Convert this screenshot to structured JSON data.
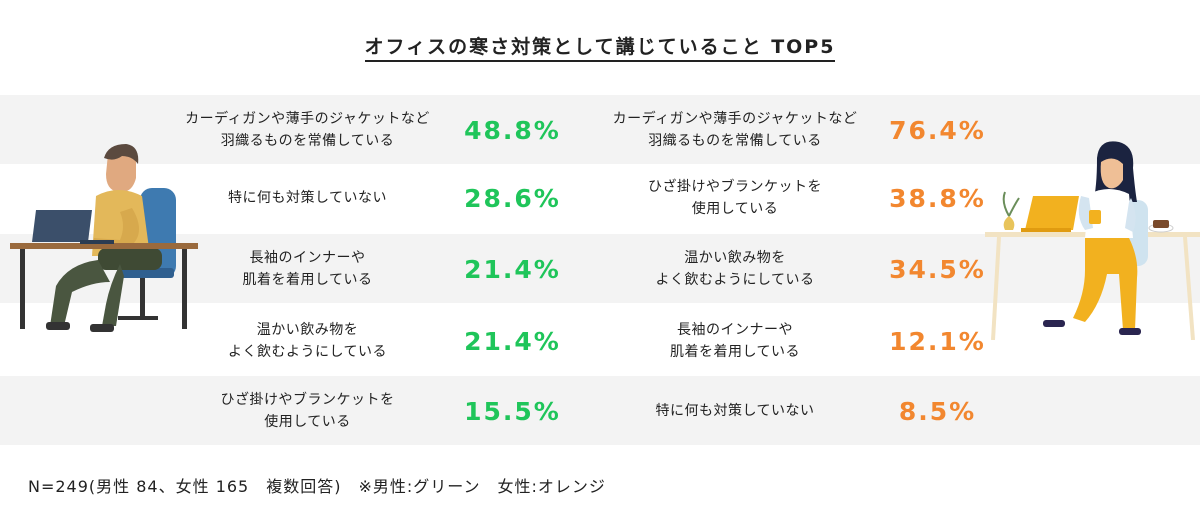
{
  "title": "オフィスの寒さ対策として講じていること TOP5",
  "colors": {
    "male": "#1fc55a",
    "female": "#f2872f",
    "band": "#f3f3f3"
  },
  "chart_data": {
    "type": "table",
    "title": "オフィスの寒さ対策として講じていること TOP5",
    "series": [
      {
        "name": "男性",
        "color": "#1fc55a",
        "rows": [
          {
            "label": "カーディガンや薄手のジャケットなど\n羽織るものを常備している",
            "value": 48.8,
            "display": "48.8%"
          },
          {
            "label": "特に何も対策していない",
            "value": 28.6,
            "display": "28.6%"
          },
          {
            "label": "長袖のインナーや\n肌着を着用している",
            "value": 21.4,
            "display": "21.4%"
          },
          {
            "label": "温かい飲み物を\nよく飲むようにしている",
            "value": 21.4,
            "display": "21.4%"
          },
          {
            "label": "ひざ掛けやブランケットを\n使用している",
            "value": 15.5,
            "display": "15.5%"
          }
        ]
      },
      {
        "name": "女性",
        "color": "#f2872f",
        "rows": [
          {
            "label": "カーディガンや薄手のジャケットなど\n羽織るものを常備している",
            "value": 76.4,
            "display": "76.4%"
          },
          {
            "label": "ひざ掛けやブランケットを\n使用している",
            "value": 38.8,
            "display": "38.8%"
          },
          {
            "label": "温かい飲み物を\nよく飲むようにしている",
            "value": 34.5,
            "display": "34.5%"
          },
          {
            "label": "長袖のインナーや\n肌着を着用している",
            "value": 12.1,
            "display": "12.1%"
          },
          {
            "label": "特に何も対策していない",
            "value": 8.5,
            "display": "8.5%"
          }
        ]
      }
    ]
  },
  "footnote": "N=249(男性 84、女性 165　複数回答)　※男性:グリーン　女性:オレンジ"
}
